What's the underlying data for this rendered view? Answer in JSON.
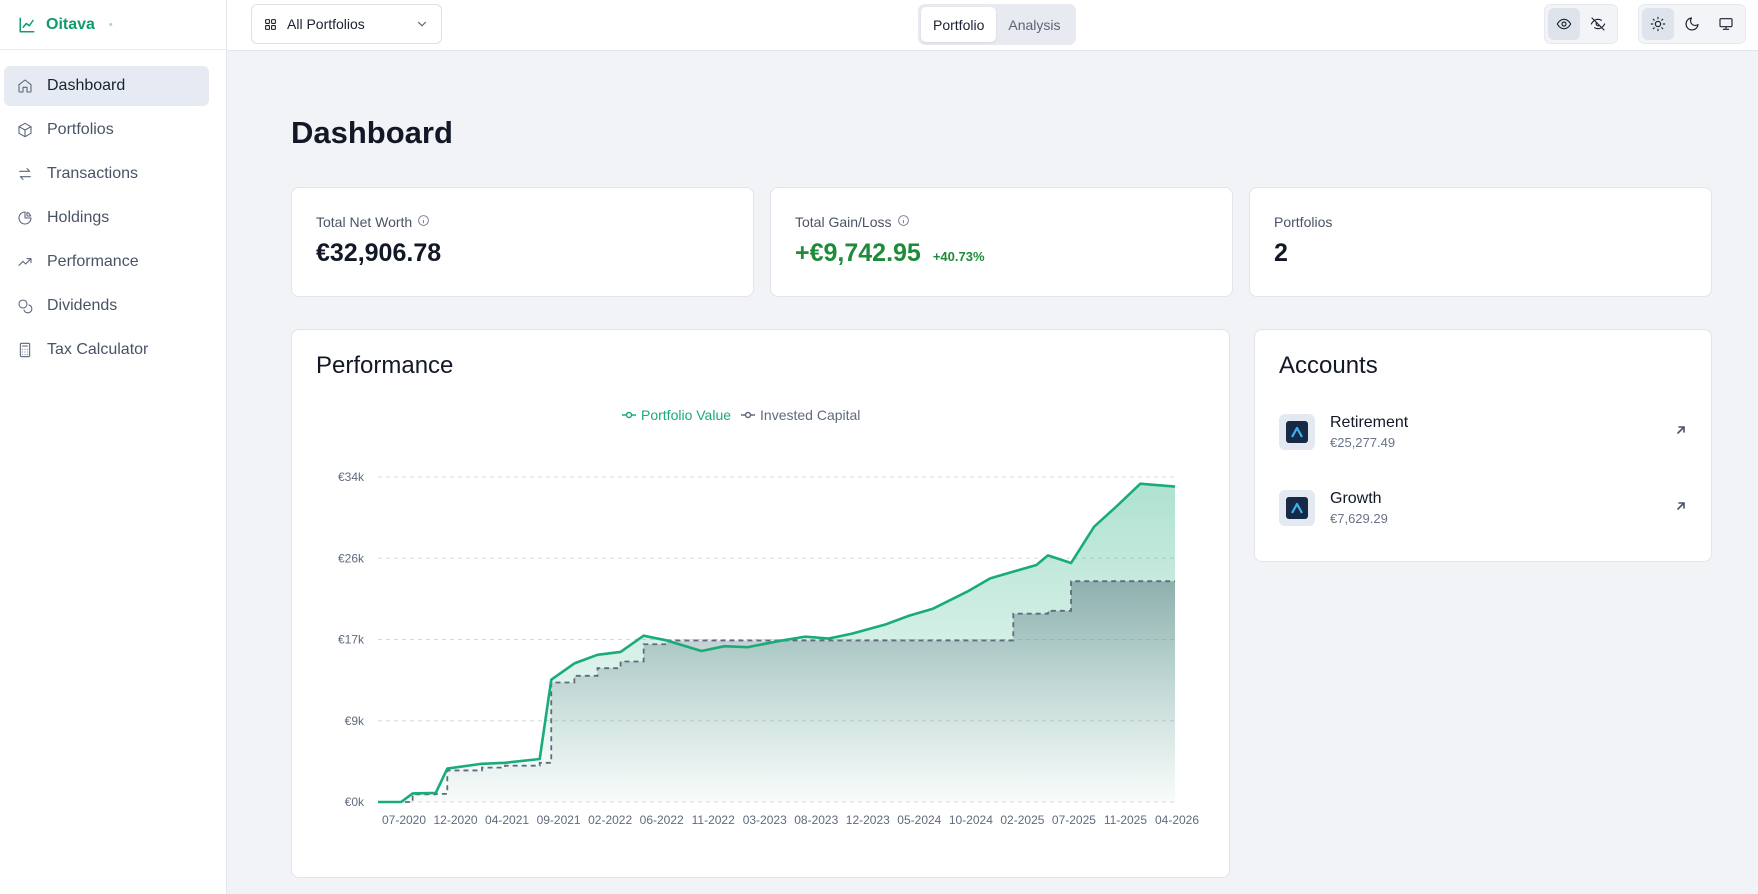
{
  "app": {
    "name": "Oitava"
  },
  "sidebar": {
    "items": [
      {
        "label": "Dashboard",
        "icon": "home-icon",
        "active": true
      },
      {
        "label": "Portfolios",
        "icon": "package-icon"
      },
      {
        "label": "Transactions",
        "icon": "arrows-swap-icon"
      },
      {
        "label": "Holdings",
        "icon": "pie-chart-icon"
      },
      {
        "label": "Performance",
        "icon": "trending-up-icon"
      },
      {
        "label": "Dividends",
        "icon": "coins-icon"
      },
      {
        "label": "Tax Calculator",
        "icon": "calculator-icon"
      }
    ]
  },
  "topbar": {
    "portfolio_select": "All Portfolios",
    "tabs": [
      "Portfolio",
      "Analysis"
    ],
    "active_tab": "Portfolio"
  },
  "main": {
    "title": "Dashboard",
    "stats": {
      "net_worth": {
        "label": "Total Net Worth",
        "value": "€32,906.78"
      },
      "gain_loss": {
        "label": "Total Gain/Loss",
        "value": "+€9,742.95",
        "pct": "+40.73%"
      },
      "portfolios": {
        "label": "Portfolios",
        "value": "2"
      }
    },
    "performance": {
      "title": "Performance"
    },
    "accounts": {
      "title": "Accounts",
      "items": [
        {
          "name": "Retirement",
          "value": "€25,277.49"
        },
        {
          "name": "Growth",
          "value": "€7,629.29"
        }
      ]
    }
  },
  "colors": {
    "accent": "#0f9d6a",
    "portfolio_line": "#1aab7a",
    "invested_line": "#5f6b7d",
    "gain": "#1f8a3a"
  },
  "chart_data": {
    "type": "area",
    "legend": [
      "Portfolio Value",
      "Invested Capital"
    ],
    "y_tick_labels": [
      "€0k",
      "€9k",
      "€17k",
      "€26k",
      "€34k"
    ],
    "y_ticks": [
      0,
      8500,
      17000,
      25500,
      34000
    ],
    "ylim": [
      0,
      34000
    ],
    "x_tick_labels": [
      "07-2020",
      "12-2020",
      "04-2021",
      "09-2021",
      "02-2022",
      "06-2022",
      "11-2022",
      "03-2023",
      "08-2023",
      "12-2023",
      "05-2024",
      "10-2024",
      "02-2025",
      "07-2025",
      "11-2025",
      "04-2026"
    ],
    "x": [
      "2020-07",
      "2020-09",
      "2020-10",
      "2020-12",
      "2021-01",
      "2021-04",
      "2021-06",
      "2021-09",
      "2021-10",
      "2021-12",
      "2022-02",
      "2022-04",
      "2022-06",
      "2022-08",
      "2022-11",
      "2023-01",
      "2023-03",
      "2023-06",
      "2023-08",
      "2023-10",
      "2023-12",
      "2024-03",
      "2024-05",
      "2024-07",
      "2024-10",
      "2024-12",
      "2025-02",
      "2025-04",
      "2025-05",
      "2025-07",
      "2025-09",
      "2025-11",
      "2026-01",
      "2026-04"
    ],
    "series": [
      {
        "name": "Portfolio Value",
        "values": [
          0,
          0,
          900,
          950,
          3500,
          4000,
          4100,
          4500,
          12800,
          14500,
          15400,
          15700,
          17400,
          16900,
          15800,
          16300,
          16200,
          16900,
          17300,
          17100,
          17600,
          18600,
          19500,
          20200,
          22000,
          23400,
          24100,
          24800,
          25800,
          25000,
          28800,
          31000,
          33300,
          33000
        ]
      },
      {
        "name": "Invested Capital",
        "values": [
          0,
          0,
          800,
          850,
          3300,
          3600,
          3800,
          4100,
          12500,
          13200,
          14000,
          14700,
          16500,
          16900,
          16900,
          16900,
          16900,
          16900,
          16900,
          16900,
          16900,
          16900,
          16900,
          16900,
          16900,
          16900,
          19700,
          19700,
          20000,
          23100,
          23100,
          23100,
          23100,
          23100
        ]
      }
    ]
  }
}
